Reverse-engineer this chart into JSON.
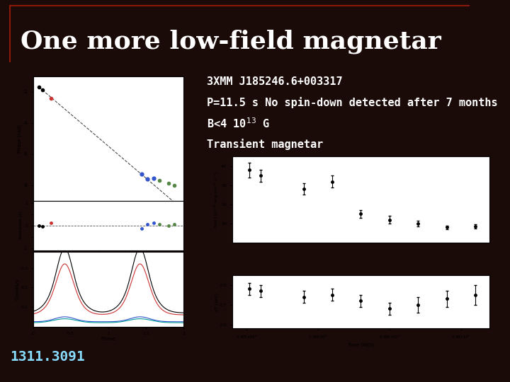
{
  "title": "One more low-field magnetar",
  "background_color": "#1a0a08",
  "title_color": "#ffffff",
  "border_color": "#8b1a0a",
  "text_lines": [
    "3XMM J185246.6+003317",
    "P=11.5 s No spin-down detected after 7 months",
    "B<4 10$^{13}$ G",
    "Transient magnetar"
  ],
  "footnote": "1311.3091",
  "left_panel_bg": "#f5f0e8",
  "right_panel_bg": "#f5f0e8"
}
